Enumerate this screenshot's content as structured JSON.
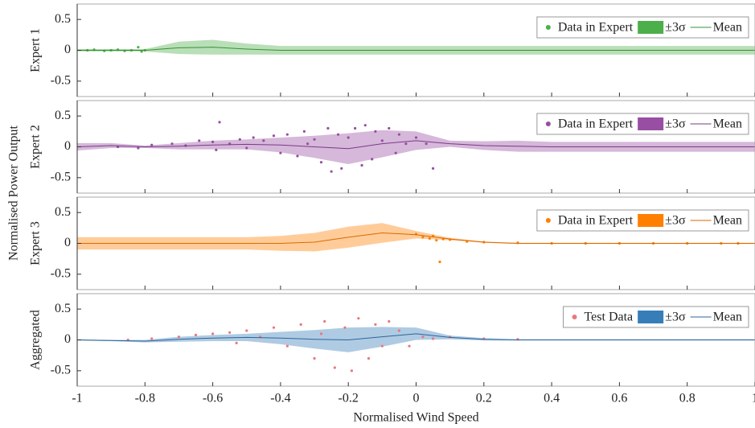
{
  "figure": {
    "ylabel": "Normalised Power Output"
  },
  "chart_data": [
    {
      "type": "line",
      "ylabel": "Expert 1",
      "ylim": [
        -0.75,
        0.75
      ],
      "yticks": [
        -0.5,
        0,
        0.5
      ],
      "x": [
        -1,
        -0.9,
        -0.8,
        -0.7,
        -0.6,
        -0.5,
        -0.4,
        -0.3,
        -0.2,
        -0.1,
        0,
        0.1,
        0.2,
        0.3,
        0.4,
        0.5,
        0.6,
        0.7,
        0.8,
        0.9,
        1
      ],
      "series": [
        {
          "name": "Data in Expert",
          "type": "scatter",
          "color": "#4daf4a",
          "x": [
            -0.97,
            -0.95,
            -0.92,
            -0.9,
            -0.88,
            -0.86,
            -0.84,
            -0.82,
            -0.81,
            -0.8
          ],
          "values": [
            0,
            0.01,
            -0.01,
            0,
            0.01,
            -0.01,
            0,
            0.05,
            -0.02,
            0
          ]
        },
        {
          "name": "±3σ",
          "type": "band",
          "color": "#4daf4a",
          "values": [
            0.02,
            0.02,
            0.02,
            0.1,
            0.12,
            0.09,
            0.07,
            0.07,
            0.07,
            0.07,
            0.07,
            0.07,
            0.07,
            0.07,
            0.07,
            0.07,
            0.07,
            0.07,
            0.07,
            0.07,
            0.07
          ]
        },
        {
          "name": "Mean",
          "type": "line",
          "color": "#3a8f38",
          "values": [
            0,
            0,
            0,
            0.04,
            0.05,
            0.02,
            0,
            0,
            0,
            0,
            0,
            0,
            0,
            0,
            0,
            0,
            0,
            0,
            0,
            0,
            0
          ]
        }
      ]
    },
    {
      "type": "line",
      "ylabel": "Expert 2",
      "ylim": [
        -0.75,
        0.75
      ],
      "yticks": [
        -0.5,
        0,
        0.5
      ],
      "x": [
        -1,
        -0.9,
        -0.8,
        -0.7,
        -0.6,
        -0.5,
        -0.4,
        -0.3,
        -0.2,
        -0.1,
        0,
        0.1,
        0.2,
        0.3,
        0.4,
        0.5,
        0.6,
        0.7,
        0.8,
        0.9,
        1
      ],
      "series": [
        {
          "name": "Data in Expert",
          "type": "scatter",
          "color": "#984ea3",
          "x": [
            -0.88,
            -0.82,
            -0.78,
            -0.72,
            -0.68,
            -0.64,
            -0.6,
            -0.58,
            -0.55,
            -0.52,
            -0.5,
            -0.48,
            -0.45,
            -0.42,
            -0.4,
            -0.38,
            -0.35,
            -0.33,
            -0.3,
            -0.28,
            -0.26,
            -0.25,
            -0.23,
            -0.22,
            -0.2,
            -0.18,
            -0.16,
            -0.15,
            -0.13,
            -0.12,
            -0.1,
            -0.08,
            -0.06,
            -0.05,
            -0.03,
            0,
            0.03,
            0.05,
            -0.59,
            -0.32
          ],
          "values": [
            0,
            -0.02,
            0.03,
            0.05,
            0.02,
            0.1,
            0.08,
            0.4,
            0.05,
            0.12,
            -0.02,
            0.15,
            0.1,
            0.18,
            -0.1,
            0.2,
            -0.15,
            0.25,
            0.12,
            -0.25,
            0.3,
            -0.4,
            0.2,
            -0.35,
            0.15,
            0.3,
            -0.3,
            0.35,
            -0.2,
            0.25,
            0.1,
            0.3,
            -0.1,
            0.2,
            0.05,
            0.15,
            0.05,
            -0.35,
            -0.05,
            0.05
          ]
        },
        {
          "name": "±3σ",
          "type": "band",
          "color": "#984ea3",
          "values": [
            0.06,
            0.04,
            0.02,
            0.05,
            0.07,
            0.08,
            0.12,
            0.18,
            0.25,
            0.22,
            0.15,
            0.05,
            0.07,
            0.09,
            0.08,
            0.08,
            0.08,
            0.08,
            0.08,
            0.08,
            0.08
          ]
        },
        {
          "name": "Mean",
          "type": "line",
          "color": "#7a3a86",
          "values": [
            0,
            0.02,
            0,
            0.01,
            0.03,
            0.04,
            0.03,
            0,
            -0.03,
            0.05,
            0.1,
            0.05,
            0.02,
            0.01,
            0,
            0,
            0,
            0,
            0,
            0,
            0
          ]
        }
      ]
    },
    {
      "type": "line",
      "ylabel": "Expert 3",
      "ylim": [
        -0.75,
        0.75
      ],
      "yticks": [
        -0.5,
        0,
        0.5
      ],
      "x": [
        -1,
        -0.9,
        -0.8,
        -0.7,
        -0.6,
        -0.5,
        -0.4,
        -0.3,
        -0.2,
        -0.1,
        0,
        0.1,
        0.2,
        0.3,
        0.4,
        0.5,
        0.6,
        0.7,
        0.8,
        0.9,
        1
      ],
      "series": [
        {
          "name": "Data in Expert",
          "type": "scatter",
          "color": "#ff7f00",
          "x": [
            0,
            0.02,
            0.04,
            0.05,
            0.06,
            0.07,
            0.08,
            0.1,
            0.15,
            0.2,
            0.3,
            0.4,
            0.5,
            0.6,
            0.7,
            0.8,
            0.9,
            0.95
          ],
          "values": [
            0.15,
            0.1,
            0.08,
            0.12,
            0.05,
            -0.3,
            0.07,
            0.06,
            0.03,
            0.02,
            0.01,
            0,
            0,
            0,
            0,
            0,
            0,
            0
          ]
        },
        {
          "name": "±3σ",
          "type": "band",
          "color": "#ff7f00",
          "values": [
            0.1,
            0.1,
            0.1,
            0.1,
            0.1,
            0.1,
            0.12,
            0.15,
            0.17,
            0.16,
            0.06,
            0.02,
            0.01,
            0.01,
            0.01,
            0.01,
            0.01,
            0.01,
            0.01,
            0.01,
            0.01
          ]
        },
        {
          "name": "Mean",
          "type": "line",
          "color": "#d96a00",
          "values": [
            0,
            0,
            0,
            0,
            0,
            0,
            0,
            0.02,
            0.1,
            0.17,
            0.14,
            0.07,
            0.02,
            0,
            0,
            0,
            0,
            0,
            0,
            0,
            0
          ]
        }
      ]
    },
    {
      "type": "line",
      "ylabel": "Aggregated",
      "xlabel": "Normalised Wind Speed",
      "xlim": [
        -1,
        1
      ],
      "xticks": [
        -1,
        -0.8,
        -0.6,
        -0.4,
        -0.2,
        0,
        0.2,
        0.4,
        0.6,
        0.8,
        1
      ],
      "ylim": [
        -0.75,
        0.75
      ],
      "yticks": [
        -0.5,
        0,
        0.5
      ],
      "x": [
        -1,
        -0.9,
        -0.8,
        -0.7,
        -0.6,
        -0.5,
        -0.4,
        -0.3,
        -0.2,
        -0.1,
        0,
        0.1,
        0.2,
        0.3,
        0.4,
        0.5,
        0.6,
        0.7,
        0.8,
        0.9,
        1
      ],
      "series": [
        {
          "name": "Test Data",
          "type": "scatter",
          "color": "#e8787c",
          "x": [
            -0.85,
            -0.78,
            -0.7,
            -0.65,
            -0.6,
            -0.55,
            -0.5,
            -0.46,
            -0.42,
            -0.38,
            -0.34,
            -0.3,
            -0.27,
            -0.24,
            -0.21,
            -0.19,
            -0.17,
            -0.14,
            -0.12,
            -0.1,
            -0.08,
            -0.05,
            -0.02,
            0.02,
            0.05,
            0.1,
            0.2,
            0.3,
            -0.53,
            -0.28
          ],
          "values": [
            0,
            0.02,
            0.05,
            0.08,
            0.1,
            0.12,
            0.15,
            0.05,
            0.2,
            -0.1,
            0.25,
            -0.3,
            0.3,
            -0.45,
            0.2,
            -0.5,
            0.35,
            -0.3,
            0.25,
            -0.1,
            0.3,
            0.15,
            -0.1,
            0.05,
            0.02,
            0.05,
            0.02,
            0.01,
            -0.05,
            0.1
          ]
        },
        {
          "name": "±3σ",
          "type": "band",
          "color": "#377eb8",
          "values": [
            0.01,
            0.01,
            0.02,
            0.04,
            0.05,
            0.06,
            0.1,
            0.15,
            0.2,
            0.16,
            0.1,
            0.03,
            0.02,
            0.01,
            0.01,
            0.01,
            0.01,
            0.01,
            0.01,
            0.01,
            0.01
          ]
        },
        {
          "name": "Mean",
          "type": "line",
          "color": "#2c6599",
          "values": [
            0,
            -0.01,
            -0.02,
            0.01,
            0.03,
            0.04,
            0.03,
            0.01,
            0,
            0.05,
            0.1,
            0.04,
            0.01,
            0,
            0,
            0,
            0,
            0,
            0,
            0,
            0
          ]
        }
      ]
    }
  ]
}
